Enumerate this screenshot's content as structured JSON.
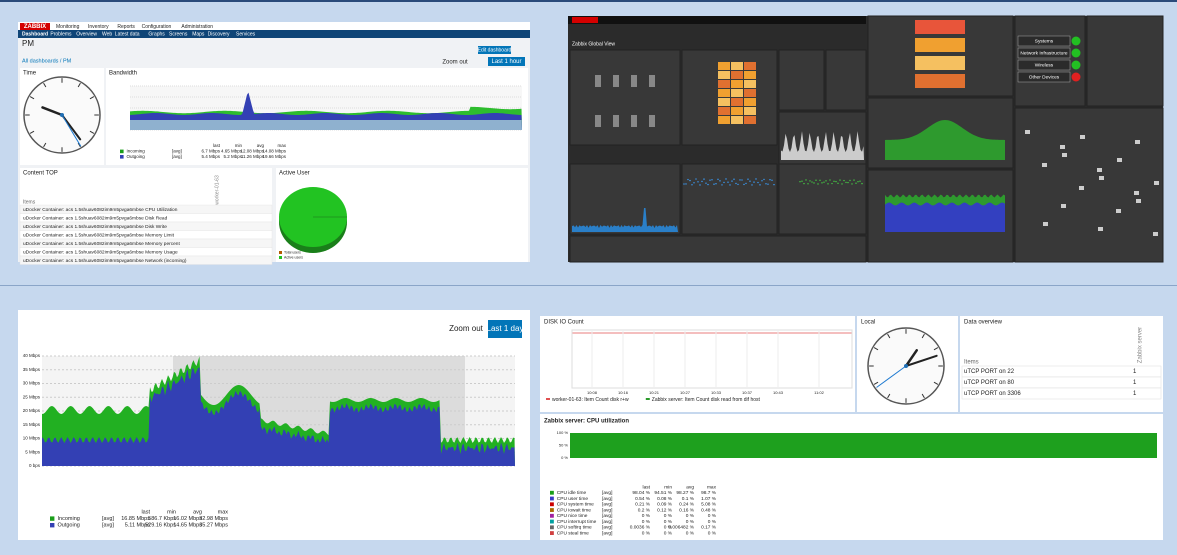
{
  "top_left": {
    "logo": "ZABBIX",
    "menu": [
      "Monitoring",
      "Inventory",
      "Reports",
      "Configuration",
      "Administration"
    ],
    "submenu": [
      "Dashboard",
      "Problems",
      "Overview",
      "Web",
      "Latest data",
      "Graphs",
      "Screens",
      "Maps",
      "Discovery",
      "Services"
    ],
    "page_title": "PM",
    "breadcrumb": "All dashboards / PM",
    "edit_button": "Edit dashboard",
    "zoom_out": "Zoom out",
    "time_range": "Last 1 hour",
    "widgets": {
      "time": "Time",
      "bandwidth": "Bandwidth",
      "content_top": "Content TOP",
      "active_user": "Active User"
    },
    "bandwidth_header": [
      "last",
      "min",
      "avg",
      "max"
    ],
    "bandwidth_rows": [
      {
        "name": "Incoming",
        "func": "[avg]",
        "values": [
          "6.7 Mbps",
          "4.65 Mbps",
          "12.08 Mbps",
          "14.08 Mbps"
        ]
      },
      {
        "name": "Outgoing",
        "func": "[avg]",
        "values": [
          "5.4 Mbps",
          "5.2 Mbps",
          "11.26 Mbps",
          "19.66 Mbps"
        ]
      }
    ],
    "content_column": "worker-01-63",
    "content_header": "Items",
    "content_rows": [
      "uDocker Container: acs 1.5shuav6082im9m5pvga6mbse CPU Utilization",
      "uDocker Container: acs 1.5shuav6082im9m5pvga6mbse Disk Read",
      "uDocker Container: acs 1.5shuav6082im9m5pvga6mbse Disk Write",
      "uDocker Container: acs 1.5shuav6082im9m5pvga6mbse Memory Limit",
      "uDocker Container: acs 1.5shuav6082im9m5pvga6mbse Memory percent",
      "uDocker Container: acs 1.5shuav6082im9m5pvga6mbse Memory Usage",
      "uDocker Container: acs 1.5shuav6082im9m5pvga6mbse Network (incoming)"
    ],
    "pie_legend": [
      "Total users",
      "Active users"
    ]
  },
  "top_right": {
    "title": "Zabbix Global View",
    "systems": [
      "Systems",
      "Network Infrastructure",
      "Wireless",
      "Other Devices"
    ]
  },
  "bottom_left": {
    "zoom_out": "Zoom out",
    "time_range": "Last 1 day",
    "yaxis": [
      "40 Mbps",
      "35 Mbps",
      "30 Mbps",
      "25 Mbps",
      "20 Mbps",
      "15 Mbps",
      "10 Mbps",
      "5 Mbps",
      "0 bps"
    ],
    "stats_header": [
      "last",
      "min",
      "avg",
      "max"
    ],
    "rows": [
      {
        "name": "Incoming",
        "func": "[avg]",
        "values": [
          "16.85 Mbps",
          "586.7 Kbps",
          "16.02 Mbps",
          "32.98 Mbps"
        ]
      },
      {
        "name": "Outgoing",
        "func": "[avg]",
        "values": [
          "5.11 Mbps",
          "529.16 Kbps",
          "14.65 Mbps",
          "35.27 Mbps"
        ]
      }
    ]
  },
  "bottom_right": {
    "disk_title": "DISK IO Count",
    "disk_times": [
      "10:08",
      "10:16",
      "10:21",
      "10:27",
      "10:33",
      "10:37",
      "10:43",
      "11:02"
    ],
    "disk_legend": [
      "worker-01-63: Item Count disk r+w",
      "Zabbix server: Item Count disk read from dif host"
    ],
    "local_title": "Local",
    "overview_title": "Data overview",
    "overview_column": "Zabbix server",
    "overview_header": "Items",
    "overview_rows": [
      [
        "uTCP PORT on 22",
        "1"
      ],
      [
        "uTCP PORT on 80",
        "1"
      ],
      [
        "uTCP PORT on 3306",
        "1"
      ]
    ],
    "cpu_title": "Zabbix server: CPU utilization",
    "cpu_yaxis": [
      "100 %",
      "50 %",
      "0 %"
    ],
    "cpu_header": [
      "last",
      "min",
      "avg",
      "max"
    ],
    "cpu_rows": [
      {
        "name": "CPU idle time",
        "func": "[avg]",
        "values": [
          "98.04 %",
          "94.51 %",
          "98.27 %",
          "98.7 %"
        ]
      },
      {
        "name": "CPU user time",
        "func": "[avg]",
        "values": [
          "0.54 %",
          "0.08 %",
          "0.1 %",
          "1.07 %"
        ]
      },
      {
        "name": "CPU system time",
        "func": "[avg]",
        "values": [
          "0.21 %",
          "0.09 %",
          "0.24 %",
          "5.08 %"
        ]
      },
      {
        "name": "CPU iowait time",
        "func": "[avg]",
        "values": [
          "0.2 %",
          "0.12 %",
          "0.16 %",
          "0.48 %"
        ]
      },
      {
        "name": "CPU nice time",
        "func": "[avg]",
        "values": [
          "0 %",
          "0 %",
          "0 %",
          "0 %"
        ]
      },
      {
        "name": "CPU interrupt time",
        "func": "[avg]",
        "values": [
          "0 %",
          "0 %",
          "0 %",
          "0 %"
        ]
      },
      {
        "name": "CPU softirq time",
        "func": "[avg]",
        "values": [
          "0.0036 %",
          "0 %",
          "0.006482 %",
          "0.17 %"
        ]
      },
      {
        "name": "CPU steal time",
        "func": "[avg]",
        "values": [
          "0 %",
          "0 %",
          "0 %",
          "0 %"
        ]
      }
    ]
  }
}
